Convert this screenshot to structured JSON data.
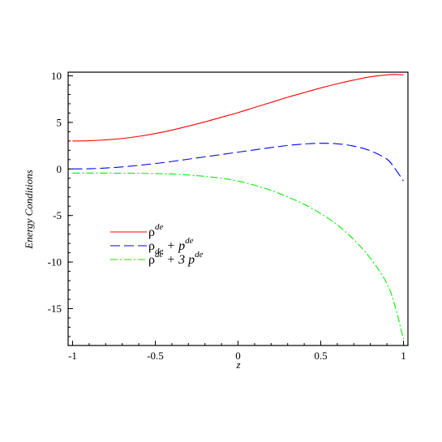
{
  "chart_data": {
    "type": "line",
    "title": "",
    "xlabel": "z",
    "ylabel": "Energy Conditions",
    "xlim": [
      -1,
      1
    ],
    "ylim": [
      -19,
      10.5
    ],
    "x_ticks": [
      "-1",
      "-0.5",
      "0",
      "0.5",
      "1"
    ],
    "x_tick_values": [
      -1,
      -0.5,
      0,
      0.5,
      1
    ],
    "y_ticks": [
      "10",
      "5",
      "0",
      "-5",
      "-10",
      "-15"
    ],
    "y_tick_values": [
      10,
      5,
      0,
      -5,
      -10,
      -15
    ],
    "grid": false,
    "legend_position": "middle-left",
    "x": [
      -1,
      -0.9,
      -0.8,
      -0.7,
      -0.6,
      -0.5,
      -0.4,
      -0.3,
      -0.2,
      -0.1,
      0,
      0.1,
      0.2,
      0.3,
      0.4,
      0.5,
      0.6,
      0.7,
      0.8,
      0.9,
      0.95,
      1
    ],
    "series": [
      {
        "legend_base": "ρ",
        "legend_sup": "de",
        "legend_sub": "",
        "legend_rest": "",
        "legend_rest_sup": "",
        "color": "#ff0000",
        "dash": "solid",
        "values": [
          3.0,
          3.03,
          3.12,
          3.27,
          3.5,
          3.8,
          4.17,
          4.6,
          5.05,
          5.55,
          6.05,
          6.6,
          7.15,
          7.7,
          8.2,
          8.7,
          9.15,
          9.55,
          9.9,
          10.1,
          10.15,
          10.1
        ]
      },
      {
        "legend_base": "ρ",
        "legend_sup": "",
        "legend_sub": "de",
        "legend_rest": " + p",
        "legend_rest_sup": "de",
        "color": "#0000ff",
        "dash": "dashed",
        "values": [
          0.0,
          0.02,
          0.1,
          0.22,
          0.38,
          0.58,
          0.8,
          1.05,
          1.3,
          1.55,
          1.8,
          2.05,
          2.3,
          2.52,
          2.68,
          2.75,
          2.7,
          2.45,
          1.95,
          1.05,
          0.0,
          -1.3
        ]
      },
      {
        "legend_base": "ρ",
        "legend_sup": "de",
        "legend_sub": "",
        "legend_rest": " + 3 p",
        "legend_rest_sup": "de",
        "color": "#00ee00",
        "dash": "dashdot",
        "values": [
          -0.45,
          -0.45,
          -0.45,
          -0.46,
          -0.47,
          -0.5,
          -0.55,
          -0.65,
          -0.8,
          -1.0,
          -1.3,
          -1.75,
          -2.3,
          -3.0,
          -3.8,
          -4.8,
          -6.0,
          -7.6,
          -9.6,
          -12.3,
          -14.8,
          -18.3
        ]
      }
    ]
  }
}
